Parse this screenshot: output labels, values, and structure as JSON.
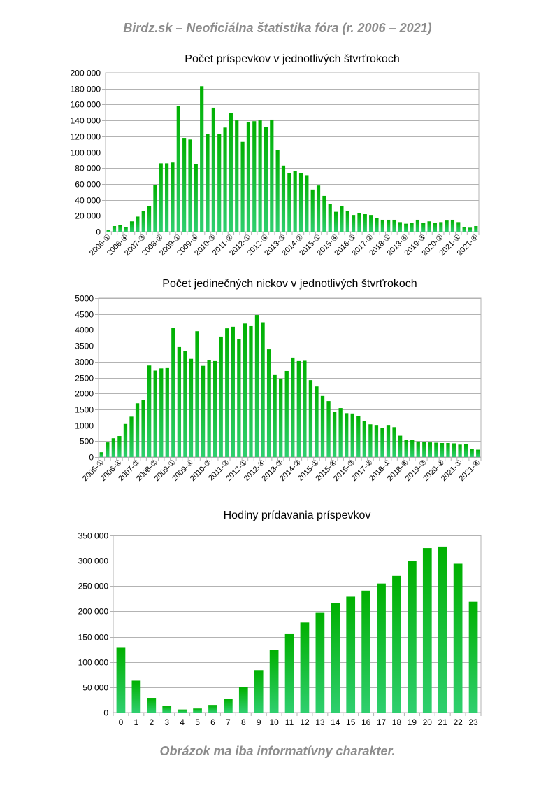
{
  "page": {
    "title": "Birdz.sk – Neoficiálna štatistika fóra (r. 2006 – 2021)",
    "footer": "Obrázok ma iba informatívny charakter."
  },
  "chart_data": [
    {
      "type": "bar",
      "title": "Počet príspevkov v jednotlivých štvrťrokoch",
      "xlabel": "",
      "ylabel": "",
      "ylim": [
        0,
        200000
      ],
      "yticks": [
        0,
        20000,
        40000,
        60000,
        80000,
        100000,
        120000,
        140000,
        160000,
        180000,
        200000
      ],
      "ytick_labels": [
        "0",
        "20 000",
        "40 000",
        "60 000",
        "80 000",
        "100 000",
        "120 000",
        "140 000",
        "160 000",
        "180 000",
        "200 000"
      ],
      "categories": [
        "2006-①",
        "2006-②",
        "2006-③",
        "2006-④",
        "2007-①",
        "2007-②",
        "2007-③",
        "2007-④",
        "2008-①",
        "2008-②",
        "2008-③",
        "2008-④",
        "2009-①",
        "2009-②",
        "2009-③",
        "2009-④",
        "2010-①",
        "2010-②",
        "2010-③",
        "2010-④",
        "2011-①",
        "2011-②",
        "2011-③",
        "2011-④",
        "2012-①",
        "2012-②",
        "2012-③",
        "2012-④",
        "2013-①",
        "2013-②",
        "2013-③",
        "2013-④",
        "2014-①",
        "2014-②",
        "2014-③",
        "2014-④",
        "2015-①",
        "2015-②",
        "2015-③",
        "2015-④",
        "2016-①",
        "2016-②",
        "2016-③",
        "2016-④",
        "2017-①",
        "2017-②",
        "2017-③",
        "2017-④",
        "2018-①",
        "2018-②",
        "2018-③",
        "2018-④",
        "2019-①",
        "2019-②",
        "2019-③",
        "2019-④",
        "2020-①",
        "2020-②",
        "2020-③",
        "2020-④",
        "2021-①",
        "2021-②",
        "2021-③",
        "2021-④"
      ],
      "shown_tick_labels": [
        "2006-①",
        "2006-④",
        "2007-③",
        "2008-②",
        "2009-①",
        "2009-④",
        "2010-③",
        "2011-②",
        "2012-①",
        "2012-④",
        "2013-③",
        "2014-②",
        "2015-①",
        "2015-④",
        "2016-③",
        "2017-②",
        "2018-①",
        "2018-④",
        "2019-③",
        "2020-②",
        "2021-①",
        "2021-④"
      ],
      "values": [
        2000,
        7000,
        8000,
        6000,
        13000,
        19000,
        26000,
        32000,
        59000,
        86000,
        86000,
        87000,
        158000,
        118000,
        116000,
        85000,
        183000,
        123000,
        156000,
        123000,
        131000,
        149000,
        140000,
        113000,
        138000,
        139000,
        140000,
        132000,
        141000,
        103000,
        83000,
        74000,
        76000,
        74000,
        71000,
        53000,
        58000,
        45000,
        35000,
        25000,
        32000,
        26000,
        21000,
        23000,
        22000,
        21000,
        17000,
        15000,
        15000,
        15000,
        12000,
        10000,
        11000,
        15000,
        11000,
        13000,
        11000,
        12000,
        14000,
        15000,
        12000,
        6000,
        5000,
        7000
      ],
      "legend": "none",
      "grid": "horizontal",
      "bar_color_top": "#00b000",
      "bar_color_bottom": "#2fcf6f"
    },
    {
      "type": "bar",
      "title": "Počet jedinečných nickov v jednotlivých štvrťrokoch",
      "xlabel": "",
      "ylabel": "",
      "ylim": [
        0,
        5000
      ],
      "yticks": [
        0,
        500,
        1000,
        1500,
        2000,
        2500,
        3000,
        3500,
        4000,
        4500,
        5000
      ],
      "ytick_labels": [
        "0",
        "500",
        "1000",
        "1500",
        "2000",
        "2500",
        "3000",
        "3500",
        "4000",
        "4500",
        "5000"
      ],
      "categories": [
        "2006-①",
        "2006-②",
        "2006-③",
        "2006-④",
        "2007-①",
        "2007-②",
        "2007-③",
        "2007-④",
        "2008-①",
        "2008-②",
        "2008-③",
        "2008-④",
        "2009-①",
        "2009-②",
        "2009-③",
        "2009-④",
        "2010-①",
        "2010-②",
        "2010-③",
        "2010-④",
        "2011-①",
        "2011-②",
        "2011-③",
        "2011-④",
        "2012-①",
        "2012-②",
        "2012-③",
        "2012-④",
        "2013-①",
        "2013-②",
        "2013-③",
        "2013-④",
        "2014-①",
        "2014-②",
        "2014-③",
        "2014-④",
        "2015-①",
        "2015-②",
        "2015-③",
        "2015-④",
        "2016-①",
        "2016-②",
        "2016-③",
        "2016-④",
        "2017-①",
        "2017-②",
        "2017-③",
        "2017-④",
        "2018-①",
        "2018-②",
        "2018-③",
        "2018-④",
        "2019-①",
        "2019-②",
        "2019-③",
        "2019-④",
        "2020-①",
        "2020-②",
        "2020-③",
        "2020-④",
        "2021-①",
        "2021-②",
        "2021-③",
        "2021-④"
      ],
      "shown_tick_labels": [
        "2006-①",
        "2006-④",
        "2007-③",
        "2008-②",
        "2009-①",
        "2009-④",
        "2010-③",
        "2011-②",
        "2012-①",
        "2012-④",
        "2013-③",
        "2014-②",
        "2015-①",
        "2015-④",
        "2016-③",
        "2017-②",
        "2018-①",
        "2018-④",
        "2019-③",
        "2020-②",
        "2021-①",
        "2021-④"
      ],
      "values": [
        150,
        460,
        590,
        660,
        1040,
        1270,
        1690,
        1800,
        2880,
        2720,
        2790,
        2800,
        4070,
        3460,
        3340,
        3090,
        3960,
        2870,
        3060,
        3020,
        3790,
        4050,
        4100,
        3720,
        4200,
        4120,
        4470,
        4240,
        3390,
        2580,
        2470,
        2710,
        3130,
        3020,
        3030,
        2420,
        2220,
        1920,
        1760,
        1420,
        1540,
        1380,
        1370,
        1280,
        1140,
        1030,
        1010,
        910,
        1010,
        940,
        670,
        540,
        540,
        490,
        470,
        460,
        450,
        440,
        440,
        430,
        390,
        400,
        250,
        230
      ],
      "legend": "none",
      "grid": "horizontal",
      "bar_color_top": "#00b000",
      "bar_color_bottom": "#2fcf6f"
    },
    {
      "type": "bar",
      "title": "Hodiny prídavania príspevkov",
      "xlabel": "",
      "ylabel": "",
      "ylim": [
        0,
        350000
      ],
      "yticks": [
        0,
        50000,
        100000,
        150000,
        200000,
        250000,
        300000,
        350000
      ],
      "ytick_labels": [
        "0",
        "50 000",
        "100 000",
        "150 000",
        "200 000",
        "250 000",
        "300 000",
        "350 000"
      ],
      "categories": [
        "0",
        "1",
        "2",
        "3",
        "4",
        "5",
        "6",
        "7",
        "8",
        "9",
        "10",
        "11",
        "12",
        "13",
        "14",
        "15",
        "16",
        "17",
        "18",
        "19",
        "20",
        "21",
        "22",
        "23"
      ],
      "shown_tick_labels": [
        "0",
        "1",
        "2",
        "3",
        "4",
        "5",
        "6",
        "7",
        "8",
        "9",
        "10",
        "11",
        "12",
        "13",
        "14",
        "15",
        "16",
        "17",
        "18",
        "19",
        "20",
        "21",
        "22",
        "23"
      ],
      "values": [
        128000,
        63000,
        29000,
        13000,
        6000,
        8000,
        15000,
        27000,
        50000,
        84000,
        124000,
        155000,
        178000,
        197000,
        216000,
        229000,
        241000,
        255000,
        270000,
        299000,
        325000,
        328000,
        294000,
        219000
      ],
      "legend": "none",
      "grid": "horizontal",
      "bar_color_top": "#00b000",
      "bar_color_bottom": "#2fcf6f"
    }
  ]
}
